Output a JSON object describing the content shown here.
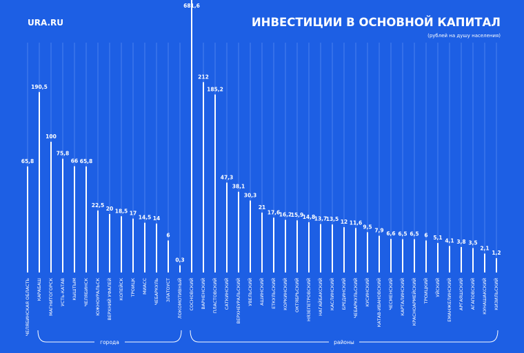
{
  "logo": "URA.RU",
  "chart_data": {
    "type": "bar",
    "title": "ИНВЕСТИЦИИ В ОСНОВНОЙ КАПИТАЛ",
    "subtitle": "(рублей на душу населения)",
    "color": "#ffffff",
    "groups": [
      {
        "categories": [
          "ЧЕЛЯБИНСКАЯ ОБЛАСТЬ"
        ],
        "values": [
          65.8
        ],
        "value_labels": [
          "65,8"
        ]
      },
      {
        "name": "города",
        "categories": [
          "КАРАБАШ",
          "МАГНИТОГОРСК",
          "УСТЬ-КАТАВ",
          "КЫШТЫМ",
          "ЧЕЛЯБИНСК",
          "ЮЖНОУРАЛЬСК",
          "ВЕРХНИЙ УФАЛЕЙ",
          "КОПЕЙСК",
          "ТРОИЦК",
          "МИАСС",
          "ЧЕБАРКУЛЬ",
          "ЗЛАТОУСТ",
          "ЛОКОМОТИВНЫЙ"
        ],
        "values": [
          190.5,
          100,
          75.8,
          66,
          65.8,
          22.5,
          20,
          18.5,
          17,
          14.5,
          14,
          6,
          0.3
        ],
        "value_labels": [
          "190,5",
          "100",
          "75,8",
          "66",
          "65,8",
          "22,5",
          "20",
          "18,5",
          "17",
          "14,5",
          "14",
          "6",
          "0,3"
        ]
      },
      {
        "name": "районы",
        "categories": [
          "СОСНОВСКИЙ",
          "ВАРНЕНСКИЙ",
          "ПЛАСТОВСКИЙ",
          "САТКИНСКИЙ",
          "ВЕРХНЕУРАЛЬСКИЙ",
          "УВЕЛЬСКИЙ",
          "АШИНСКИЙ",
          "ЕТКУЛЬСКИЙ",
          "КОРКИНСКИЙ",
          "ОКТЯБРЬСКИЙ",
          "НЯЗЕПЕТРОВСКИЙ",
          "НАГАЙБАКСКИЙ",
          "КАСЛИНСКИЙ",
          "БРЕДИНСКИЙ",
          "ЧЕБАРКУЛЬСКИЙ",
          "КУСИНСКИЙ",
          "КАТАВ-ИВАНОВСКИЙ",
          "ЧЕСМЕНСКИЙ",
          "КАРТАЛИНСКИЙ",
          "КРАСНОАРМЕЙСКИЙ",
          "ТРОИЦКИЙ",
          "УЙСКИЙ",
          "ЕМАНЖЕЛИНСКИЙ",
          "АРГАЯШСКИЙ",
          "АГАПОВСКИЙ",
          "КУНАШАКСКИЙ",
          "КИЗИЛЬСКИЙ"
        ],
        "values": [
          681.6,
          212,
          185.2,
          47.3,
          38.1,
          30.3,
          21,
          17.6,
          16.2,
          15.9,
          14.8,
          13.7,
          13.5,
          12,
          11.6,
          9.5,
          7.9,
          6.6,
          6.5,
          6.5,
          6,
          5.1,
          4.1,
          3.8,
          3.5,
          2.1,
          1.2
        ],
        "value_labels": [
          "681,6",
          "212",
          "185,2",
          "47,3",
          "38,1",
          "30,3",
          "21",
          "17,6",
          "16,2",
          "15,9",
          "14,8",
          "13,7",
          "13,5",
          "12",
          "11,6",
          "9,5",
          "7,9",
          "6,6",
          "6,5",
          "6,5",
          "6",
          "5,1",
          "4,1",
          "3,8",
          "3,5",
          "2,1",
          "1,2"
        ]
      }
    ]
  }
}
